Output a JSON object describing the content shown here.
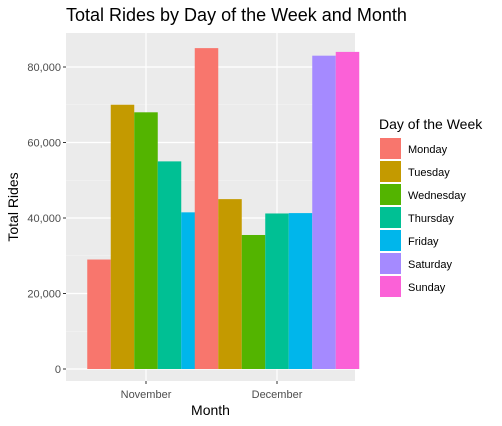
{
  "chart_data": {
    "type": "bar",
    "title": "Total Rides by Day of the Week and Month",
    "xlabel": "Month",
    "ylabel": "Total Rides",
    "categories": [
      "November",
      "December"
    ],
    "ylim": [
      0,
      90000
    ],
    "yticks": [
      0,
      20000,
      40000,
      60000,
      80000
    ],
    "ytick_labels": [
      "0",
      "20,000",
      "40,000",
      "60,000",
      "80,000"
    ],
    "grid": true,
    "legend": {
      "title": "Day of the Week",
      "position": "right"
    },
    "series": [
      {
        "name": "Monday",
        "color": "#F8766D",
        "values": [
          29000,
          85000
        ]
      },
      {
        "name": "Tuesday",
        "color": "#C49A00",
        "values": [
          70000,
          45000
        ]
      },
      {
        "name": "Wednesday",
        "color": "#53B400",
        "values": [
          68000,
          35500
        ]
      },
      {
        "name": "Thursday",
        "color": "#00C094",
        "values": [
          55000,
          41200
        ]
      },
      {
        "name": "Friday",
        "color": "#00B6EB",
        "values": [
          41500,
          41300
        ]
      },
      {
        "name": "Saturday",
        "color": "#A58AFF",
        "values": [
          0,
          83000
        ]
      },
      {
        "name": "Sunday",
        "color": "#FB61D7",
        "values": [
          0,
          84000
        ]
      }
    ]
  }
}
